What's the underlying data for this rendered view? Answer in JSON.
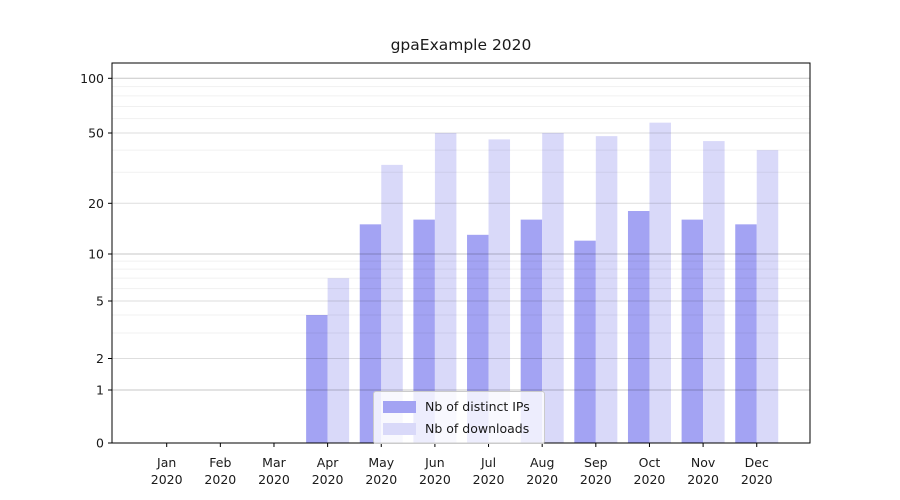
{
  "chart_data": {
    "type": "bar",
    "title": "gpaExample 2020",
    "categories": [
      "Jan 2020",
      "Feb 2020",
      "Mar 2020",
      "Apr 2020",
      "May 2020",
      "Jun 2020",
      "Jul 2020",
      "Aug 2020",
      "Sep 2020",
      "Oct 2020",
      "Nov 2020",
      "Dec 2020"
    ],
    "series": [
      {
        "name": "Nb of distinct IPs",
        "color": "#a3a3f3",
        "values": [
          0,
          0,
          0,
          4,
          15,
          16,
          13,
          16,
          12,
          18,
          16,
          15
        ]
      },
      {
        "name": "Nb of downloads",
        "color": "#d9d9f9",
        "values": [
          0,
          0,
          0,
          7,
          33,
          50,
          46,
          50,
          48,
          57,
          45,
          40
        ]
      }
    ],
    "xlabel": "",
    "ylabel": "",
    "y_axis": {
      "scale": "symlog",
      "tick_values": [
        0,
        1,
        2,
        5,
        10,
        20,
        50,
        100
      ],
      "tick_labels": [
        "0",
        "1",
        "2",
        "5",
        "10",
        "20",
        "50",
        "100"
      ],
      "minor_tick_values": [
        3,
        4,
        6,
        7,
        8,
        9,
        30,
        40,
        60,
        70,
        80,
        90
      ],
      "ylim": [
        0,
        130
      ]
    },
    "grid": true,
    "legend_position": "lower center",
    "colors": {
      "axis": "#000000",
      "text": "#1a1a1a",
      "grid_decade": "rgba(0,0,0,0.22)",
      "grid_labeled": "rgba(0,0,0,0.13)",
      "grid_minor": "rgba(0,0,0,0.06)"
    }
  }
}
